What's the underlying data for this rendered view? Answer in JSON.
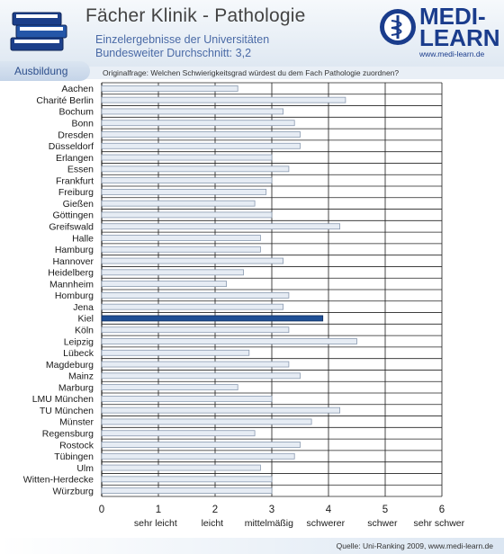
{
  "header": {
    "title": "Fächer Klinik - Pathologie",
    "subtitle_line1": "Einzelergebnisse der Universitäten",
    "subtitle_line2_prefix": "Bundesweiter Durchschnitt: ",
    "average": "3,2",
    "logo_text_line1": "MEDI-",
    "logo_text_line2": "LEARN",
    "logo_url": "www.medi-learn.de"
  },
  "tab": {
    "label": "Ausbildung"
  },
  "question": "Originalfrage: Welchen Schwierigkeitsgrad würdest du dem Fach Pathologie zuordnen?",
  "footer": {
    "source": "Quelle: Uni-Ranking 2009, www.medi-learn.de"
  },
  "colors": {
    "bar_fill": "#e6ecf4",
    "bar_stroke": "#8a9ab0",
    "highlight_fill": "#1f4f95",
    "title_blue": "#1a3c8c"
  },
  "chart_data": {
    "type": "bar",
    "orientation": "horizontal",
    "categories": [
      "Aachen",
      "Charité Berlin",
      "Bochum",
      "Bonn",
      "Dresden",
      "Düsseldorf",
      "Erlangen",
      "Essen",
      "Frankfurt",
      "Freiburg",
      "Gießen",
      "Göttingen",
      "Greifswald",
      "Halle",
      "Hamburg",
      "Hannover",
      "Heidelberg",
      "Mannheim",
      "Homburg",
      "Jena",
      "Kiel",
      "Köln",
      "Leipzig",
      "Lübeck",
      "Magdeburg",
      "Mainz",
      "Marburg",
      "LMU München",
      "TU München",
      "Münster",
      "Regensburg",
      "Rostock",
      "Tübingen",
      "Ulm",
      "Witten-Herdecke",
      "Würzburg"
    ],
    "values": [
      2.4,
      4.3,
      3.2,
      3.4,
      3.5,
      3.5,
      3.0,
      3.3,
      3.0,
      2.9,
      2.7,
      3.0,
      4.2,
      2.8,
      2.8,
      3.2,
      2.5,
      2.2,
      3.3,
      3.2,
      3.9,
      3.3,
      4.5,
      2.6,
      3.3,
      3.5,
      2.4,
      3.0,
      4.2,
      3.7,
      2.7,
      3.5,
      3.4,
      2.8,
      3.0,
      3.0
    ],
    "highlight": "Kiel",
    "xlim": [
      0,
      6
    ],
    "x_ticks": [
      "0",
      "1",
      "2",
      "3",
      "4",
      "5",
      "6"
    ],
    "x_tick_values": [
      0,
      1,
      2,
      3,
      4,
      5,
      6
    ],
    "verbal_labels": [
      "sehr leicht",
      "leicht",
      "mittelmäßig",
      "schwerer",
      "schwer",
      "sehr schwer"
    ],
    "verbal_values": [
      1,
      2,
      3,
      4,
      5,
      6
    ],
    "grid": true
  }
}
